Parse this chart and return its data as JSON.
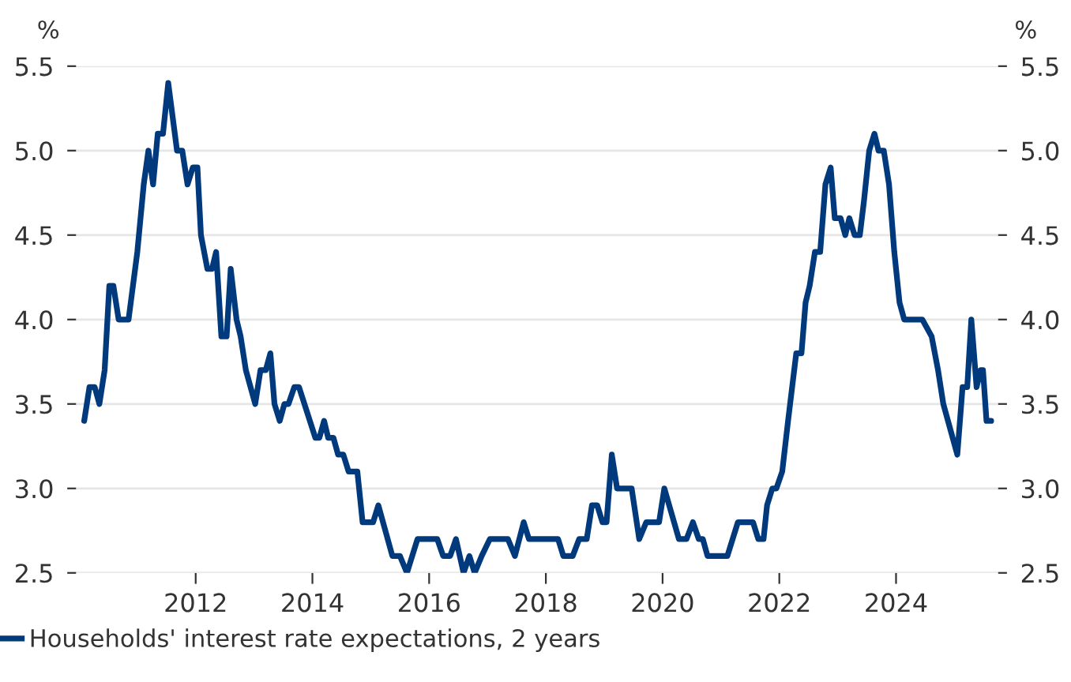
{
  "chart_data": {
    "type": "line",
    "ylabel": "%",
    "y2label": "%",
    "x": [
      2010.09,
      2010.18,
      2010.27,
      2010.35,
      2010.44,
      2010.52,
      2010.59,
      2010.68,
      2010.85,
      2011.0,
      2011.11,
      2011.19,
      2011.27,
      2011.35,
      2011.44,
      2011.53,
      2011.68,
      2011.77,
      2011.86,
      2011.95,
      2012.03,
      2012.09,
      2012.2,
      2012.28,
      2012.35,
      2012.44,
      2012.53,
      2012.6,
      2012.7,
      2012.77,
      2012.86,
      2013.02,
      2013.11,
      2013.2,
      2013.28,
      2013.35,
      2013.44,
      2013.52,
      2013.59,
      2013.69,
      2013.77,
      2014.05,
      2014.12,
      2014.2,
      2014.27,
      2014.36,
      2014.44,
      2014.53,
      2014.62,
      2014.77,
      2014.86,
      2015.04,
      2015.13,
      2015.37,
      2015.5,
      2015.62,
      2015.8,
      2016.14,
      2016.24,
      2016.36,
      2016.46,
      2016.59,
      2016.69,
      2016.78,
      2016.9,
      2017.04,
      2017.35,
      2017.47,
      2017.62,
      2017.71,
      2018.21,
      2018.3,
      2018.46,
      2018.57,
      2018.7,
      2018.79,
      2018.88,
      2018.97,
      2019.04,
      2019.13,
      2019.22,
      2019.47,
      2019.6,
      2019.72,
      2019.94,
      2020.03,
      2020.28,
      2020.41,
      2020.52,
      2020.62,
      2020.69,
      2020.77,
      2021.11,
      2021.29,
      2021.55,
      2021.64,
      2021.73,
      2021.79,
      2021.88,
      2021.95,
      2022.05,
      2022.15,
      2022.29,
      2022.38,
      2022.45,
      2022.52,
      2022.61,
      2022.7,
      2022.79,
      2022.88,
      2022.95,
      2023.05,
      2023.13,
      2023.2,
      2023.29,
      2023.38,
      2023.45,
      2023.54,
      2023.63,
      2023.7,
      2023.79,
      2023.88,
      2023.97,
      2024.06,
      2024.14,
      2024.45,
      2024.61,
      2024.72,
      2024.81,
      2025.05,
      2025.14,
      2025.22,
      2025.29,
      2025.38,
      2025.45,
      2025.49,
      2025.55,
      2025.63
    ],
    "series": [
      {
        "name": "Households' interest rate expectations, 2 years",
        "color": "#003a7d",
        "values": [
          3.4,
          3.6,
          3.6,
          3.5,
          3.7,
          4.2,
          4.2,
          4.0,
          4.0,
          4.4,
          4.8,
          5.0,
          4.8,
          5.1,
          5.1,
          5.4,
          5.0,
          5.0,
          4.8,
          4.9,
          4.9,
          4.5,
          4.3,
          4.3,
          4.4,
          3.9,
          3.9,
          4.3,
          4.0,
          3.9,
          3.7,
          3.5,
          3.7,
          3.7,
          3.8,
          3.5,
          3.4,
          3.5,
          3.5,
          3.6,
          3.6,
          3.3,
          3.3,
          3.4,
          3.3,
          3.3,
          3.2,
          3.2,
          3.1,
          3.1,
          2.8,
          2.8,
          2.9,
          2.6,
          2.6,
          2.5,
          2.7,
          2.7,
          2.6,
          2.6,
          2.7,
          2.5,
          2.6,
          2.5,
          2.6,
          2.7,
          2.7,
          2.6,
          2.8,
          2.7,
          2.7,
          2.6,
          2.6,
          2.7,
          2.7,
          2.9,
          2.9,
          2.8,
          2.8,
          3.2,
          3.0,
          3.0,
          2.7,
          2.8,
          2.8,
          3.0,
          2.7,
          2.7,
          2.8,
          2.7,
          2.7,
          2.6,
          2.6,
          2.8,
          2.8,
          2.7,
          2.7,
          2.9,
          3.0,
          3.0,
          3.1,
          3.4,
          3.8,
          3.8,
          4.1,
          4.2,
          4.4,
          4.4,
          4.8,
          4.9,
          4.6,
          4.6,
          4.5,
          4.6,
          4.5,
          4.5,
          4.7,
          5.0,
          5.1,
          5.0,
          5.0,
          4.8,
          4.4,
          4.1,
          4.0,
          4.0,
          3.9,
          3.7,
          3.5,
          3.2,
          3.6,
          3.6,
          4.0,
          3.6,
          3.7,
          3.7,
          3.4,
          3.4
        ]
      }
    ],
    "xlim": [
      2009.95,
      2025.75
    ],
    "xticks": [
      2012,
      2014,
      2016,
      2018,
      2020,
      2022,
      2024
    ],
    "ylim": [
      2.5,
      5.5
    ],
    "yticks": [
      2.5,
      {
        "value": 3,
        "label": "3.0"
      },
      3.5,
      {
        "value": 4,
        "label": "4.0"
      },
      4.5,
      {
        "value": 5,
        "label": "5.0"
      },
      5.5
    ],
    "y2lim": [
      2.5,
      5.5
    ],
    "y2ticks": [
      2.5,
      {
        "value": 3,
        "label": "3.0"
      },
      3.5,
      {
        "value": 4,
        "label": "4.0"
      },
      4.5,
      {
        "value": 5,
        "label": "5.0"
      },
      5.5
    ],
    "grid": "y",
    "legend": "bottom",
    "marker": "none",
    "line_style": "solid"
  }
}
